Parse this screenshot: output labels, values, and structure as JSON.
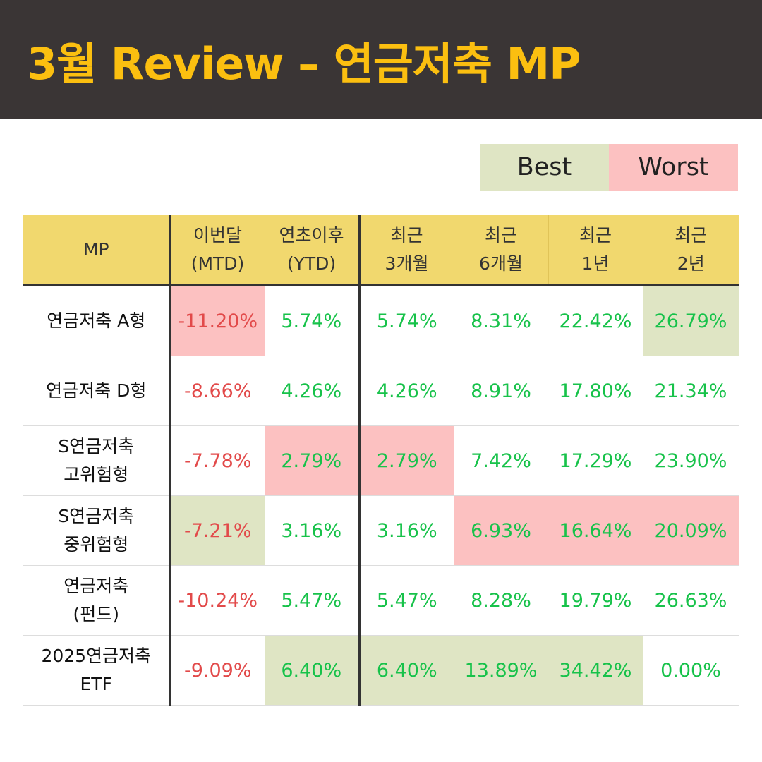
{
  "header": {
    "title": "3월 Review – 연금저축 MP"
  },
  "legend": {
    "best_label": "Best",
    "worst_label": "Worst"
  },
  "table": {
    "headers": [
      {
        "line1": "MP",
        "line2": ""
      },
      {
        "line1": "이번달",
        "line2": "(MTD)"
      },
      {
        "line1": "연초이후",
        "line2": "(YTD)"
      },
      {
        "line1": "최근",
        "line2": "3개월"
      },
      {
        "line1": "최근",
        "line2": "6개월"
      },
      {
        "line1": "최근",
        "line2": "1년"
      },
      {
        "line1": "최근",
        "line2": "2년"
      }
    ],
    "rows": [
      {
        "name_line1": "연금저축 A형",
        "name_line2": "",
        "cells": [
          {
            "value": "-11.20%",
            "sign": "neg",
            "mark": "worst"
          },
          {
            "value": "5.74%",
            "sign": "pos",
            "mark": ""
          },
          {
            "value": "5.74%",
            "sign": "pos",
            "mark": ""
          },
          {
            "value": "8.31%",
            "sign": "pos",
            "mark": ""
          },
          {
            "value": "22.42%",
            "sign": "pos",
            "mark": ""
          },
          {
            "value": "26.79%",
            "sign": "pos",
            "mark": "best"
          }
        ]
      },
      {
        "name_line1": "연금저축 D형",
        "name_line2": "",
        "cells": [
          {
            "value": "-8.66%",
            "sign": "neg",
            "mark": ""
          },
          {
            "value": "4.26%",
            "sign": "pos",
            "mark": ""
          },
          {
            "value": "4.26%",
            "sign": "pos",
            "mark": ""
          },
          {
            "value": "8.91%",
            "sign": "pos",
            "mark": ""
          },
          {
            "value": "17.80%",
            "sign": "pos",
            "mark": ""
          },
          {
            "value": "21.34%",
            "sign": "pos",
            "mark": ""
          }
        ]
      },
      {
        "name_line1": "S연금저축",
        "name_line2": "고위험형",
        "cells": [
          {
            "value": "-7.78%",
            "sign": "neg",
            "mark": ""
          },
          {
            "value": "2.79%",
            "sign": "pos",
            "mark": "worst"
          },
          {
            "value": "2.79%",
            "sign": "pos",
            "mark": "worst"
          },
          {
            "value": "7.42%",
            "sign": "pos",
            "mark": ""
          },
          {
            "value": "17.29%",
            "sign": "pos",
            "mark": ""
          },
          {
            "value": "23.90%",
            "sign": "pos",
            "mark": ""
          }
        ]
      },
      {
        "name_line1": "S연금저축",
        "name_line2": "중위험형",
        "cells": [
          {
            "value": "-7.21%",
            "sign": "neg",
            "mark": "best"
          },
          {
            "value": "3.16%",
            "sign": "pos",
            "mark": ""
          },
          {
            "value": "3.16%",
            "sign": "pos",
            "mark": ""
          },
          {
            "value": "6.93%",
            "sign": "pos",
            "mark": "worst"
          },
          {
            "value": "16.64%",
            "sign": "pos",
            "mark": "worst"
          },
          {
            "value": "20.09%",
            "sign": "pos",
            "mark": "worst"
          }
        ]
      },
      {
        "name_line1": "연금저축",
        "name_line2": "(펀드)",
        "cells": [
          {
            "value": "-10.24%",
            "sign": "neg",
            "mark": ""
          },
          {
            "value": "5.47%",
            "sign": "pos",
            "mark": ""
          },
          {
            "value": "5.47%",
            "sign": "pos",
            "mark": ""
          },
          {
            "value": "8.28%",
            "sign": "pos",
            "mark": ""
          },
          {
            "value": "19.79%",
            "sign": "pos",
            "mark": ""
          },
          {
            "value": "26.63%",
            "sign": "pos",
            "mark": ""
          }
        ]
      },
      {
        "name_line1": "2025연금저축",
        "name_line2": "ETF",
        "cells": [
          {
            "value": "-9.09%",
            "sign": "neg",
            "mark": ""
          },
          {
            "value": "6.40%",
            "sign": "pos",
            "mark": "best"
          },
          {
            "value": "6.40%",
            "sign": "pos",
            "mark": "best"
          },
          {
            "value": "13.89%",
            "sign": "pos",
            "mark": "best"
          },
          {
            "value": "34.42%",
            "sign": "pos",
            "mark": "best"
          },
          {
            "value": "0.00%",
            "sign": "pos",
            "mark": ""
          }
        ]
      }
    ]
  },
  "colors": {
    "header_bg": "#3a3535",
    "title": "#fbbf10",
    "table_header_bg": "#f1d86e",
    "best": "#dfe5c4",
    "worst": "#fcc1c1",
    "positive": "#17c24a",
    "negative": "#e24a4a"
  }
}
